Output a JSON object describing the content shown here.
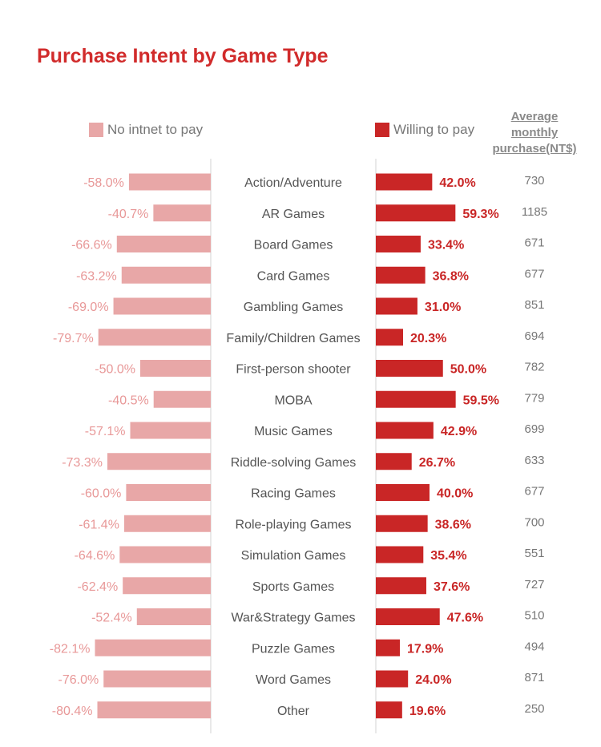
{
  "title": "Purchase Intent by Game Type",
  "legend": {
    "no_pay": "No intnet to pay",
    "willing": "Willing to pay"
  },
  "column_header": {
    "line1": "Average",
    "line2": "monthly",
    "line3": "purchase(NT$)"
  },
  "colors": {
    "title": "#d12b2b",
    "no_pay": "#e8a7a7",
    "willing": "#c92626",
    "willing_label": "#c92626",
    "no_pay_label": "#e89898",
    "category_text": "#555555",
    "value_text": "#777777",
    "divider": "#e2e2e2"
  },
  "chart_data": {
    "type": "bar",
    "title": "Purchase Intent by Game Type",
    "categories": [
      "Action/Adventure",
      "AR Games",
      "Board Games",
      "Card Games",
      "Gambling Games",
      "Family/Children Games",
      "First-person shooter",
      "MOBA",
      "Music Games",
      "Riddle-solving Games",
      "Racing Games",
      "Role-playing Games",
      "Simulation Games",
      "Sports Games",
      "War&Strategy Games",
      "Puzzle Games",
      "Word Games",
      "Other"
    ],
    "series": [
      {
        "name": "No intnet to pay",
        "values": [
          -58.0,
          -40.7,
          -66.6,
          -63.2,
          -69.0,
          -79.7,
          -50.0,
          -40.5,
          -57.1,
          -73.3,
          -60.0,
          -61.4,
          -64.6,
          -62.4,
          -52.4,
          -82.1,
          -76.0,
          -80.4
        ],
        "labels": [
          "-58.0%",
          "-40.7%",
          "-66.6%",
          "-63.2%",
          "-69.0%",
          "-79.7%",
          "-50.0%",
          "-40.5%",
          "-57.1%",
          "-73.3%",
          "-60.0%",
          "-61.4%",
          "-64.6%",
          "-62.4%",
          "-52.4%",
          "-82.1%",
          "-76.0%",
          "-80.4%"
        ]
      },
      {
        "name": "Willing to pay",
        "values": [
          42.0,
          59.3,
          33.4,
          36.8,
          31.0,
          20.3,
          50.0,
          59.5,
          42.9,
          26.7,
          40.0,
          38.6,
          35.4,
          37.6,
          47.6,
          17.9,
          24.0,
          19.6
        ],
        "labels": [
          "42.0%",
          "59.3%",
          "33.4%",
          "36.8%",
          "31.0%",
          "20.3%",
          "50.0%",
          "59.5%",
          "42.9%",
          "26.7%",
          "40.0%",
          "38.6%",
          "35.4%",
          "37.6%",
          "47.6%",
          "17.9%",
          "24.0%",
          "19.6%"
        ]
      }
    ],
    "avg_monthly_purchase": [
      "730",
      "1185",
      "671",
      "677",
      "851",
      "694",
      "782",
      "779",
      "699",
      "633",
      "677",
      "700",
      "551",
      "727",
      "510",
      "494",
      "871",
      "250"
    ],
    "grid": false,
    "legend_position": "top"
  }
}
